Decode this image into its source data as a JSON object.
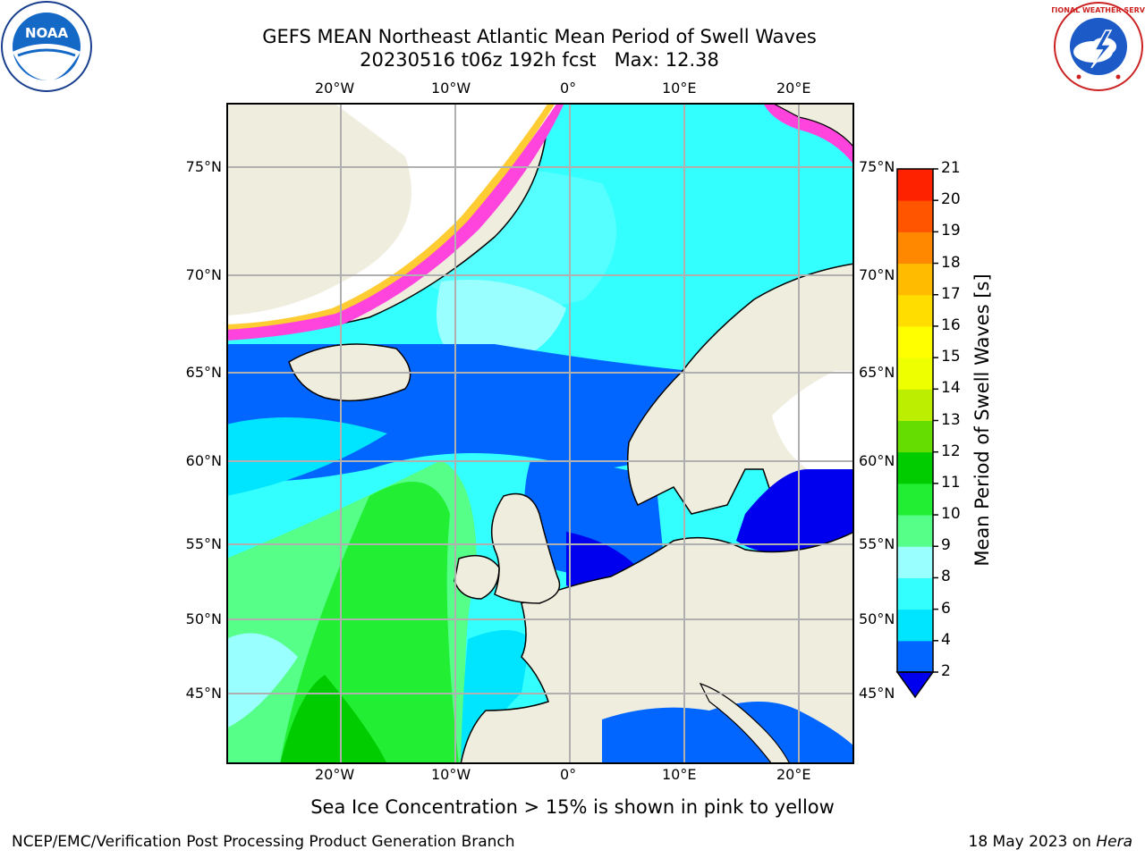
{
  "title_line1": "GEFS MEAN Northeast Atlantic Mean Period of Swell Waves",
  "title_line2": "20230516 t06z 192h fcst   Max: 12.38",
  "lon_ticks": [
    "20°W",
    "10°W",
    "0°",
    "10°E",
    "20°E"
  ],
  "lat_ticks": [
    "75°N",
    "70°N",
    "65°N",
    "60°N",
    "55°N",
    "50°N",
    "45°N"
  ],
  "colorbar": {
    "label": "Mean Period of Swell Waves [s]",
    "ticks": [
      "2",
      "4",
      "6",
      "8",
      "9",
      "10",
      "11",
      "12",
      "13",
      "14",
      "15",
      "16",
      "17",
      "18",
      "19",
      "20",
      "21"
    ],
    "colors": [
      "#0066ff",
      "#00e5ff",
      "#33ffff",
      "#99ffff",
      "#55ff88",
      "#22ee33",
      "#00cc00",
      "#66dd00",
      "#bbee00",
      "#eeff00",
      "#ffff00",
      "#ffdd00",
      "#ffbb00",
      "#ff8800",
      "#ff5500",
      "#ff2200"
    ],
    "extend_color": "#0000ee"
  },
  "caption": "Sea Ice Concentration > 15% is shown in pink to yellow",
  "footer_left": "NCEP/EMC/Verification Post Processing Product Generation Branch",
  "footer_right_date": "18 May 2023 on ",
  "footer_right_host": "Hera",
  "logos": {
    "noaa_text": "NOAA",
    "nws_text": "NATIONAL WEATHER SERVICE"
  },
  "colors": {
    "land": "#efedde",
    "ocean_default": "#33ffff",
    "ice_pink": "#ff44dd",
    "ice_yellow": "#ffcc33"
  }
}
